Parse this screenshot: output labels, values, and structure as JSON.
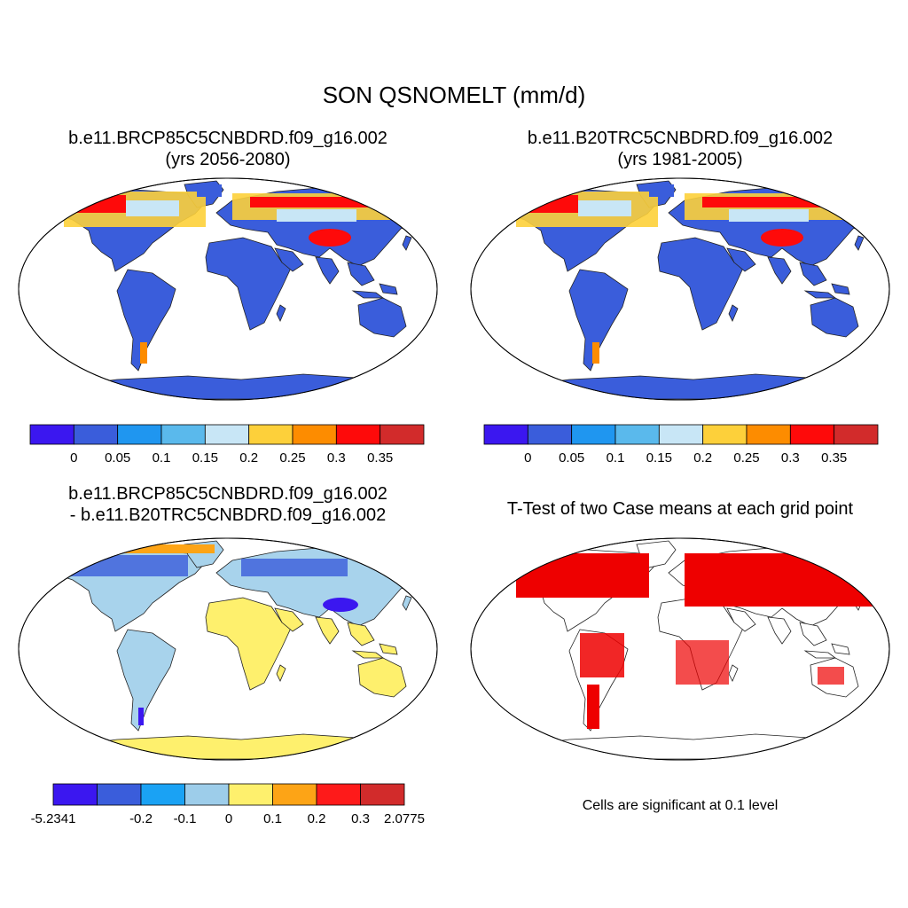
{
  "title": "SON QSNOMELT (mm/d)",
  "panels": [
    {
      "title_line1": "b.e11.BRCP85C5CNBDRD.f09_g16.002",
      "title_line2": "(yrs 2056-2080)"
    },
    {
      "title_line1": "b.e11.B20TRC5CNBDRD.f09_g16.002",
      "title_line2": "(yrs 1981-2005)"
    },
    {
      "title_line1": "b.e11.BRCP85C5CNBDRD.f09_g16.002",
      "title_line2": "- b.e11.B20TRC5CNBDRD.f09_g16.002"
    },
    {
      "title_line1": "T-Test of two Case means at each grid point",
      "title_line2": ""
    }
  ],
  "colorbar_abs": {
    "colors": [
      "#3b17f0",
      "#3a5ddb",
      "#1f96f0",
      "#5ab9ec",
      "#c8e6f6",
      "#fdd03a",
      "#fd8c00",
      "#fe0a0a",
      "#d22b2b"
    ],
    "labels": [
      "0",
      "0.05",
      "0.1",
      "0.15",
      "0.2",
      "0.25",
      "0.3",
      "0.35"
    ]
  },
  "colorbar_diff": {
    "colors": [
      "#3b17f0",
      "#3a5ddb",
      "#1aa2f4",
      "#9dcdea",
      "#fef06d",
      "#fda416",
      "#fe1a1a",
      "#d22b2b"
    ],
    "labels": [
      "-5.2341",
      "-0.2",
      "-0.1",
      "0",
      "0.1",
      "0.2",
      "0.3",
      "2.0775"
    ]
  },
  "significance_note": "Cells are significant at 0.1 level",
  "map_colors": {
    "land_low": "#3a5ddb",
    "diff_land": "#a8d3ec",
    "diff_pos": "#fef06d",
    "sig": "#ee0000"
  }
}
